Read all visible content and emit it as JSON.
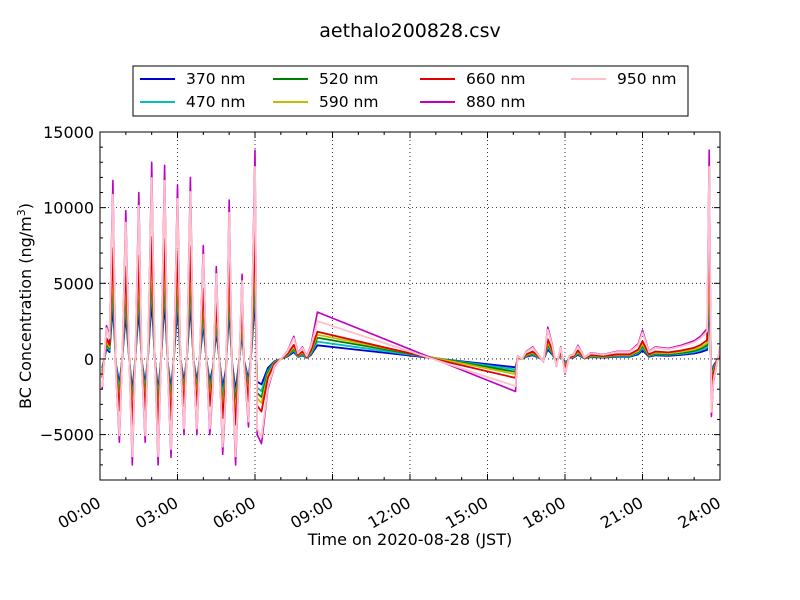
{
  "chart_data": {
    "type": "line",
    "title": "aethalo200828.csv",
    "xlabel": "Time on 2020-08-28 (JST)",
    "ylabel": "BC Concentration (ng/m",
    "ylabel_sup": "3",
    "ylabel_end": ")",
    "xlim": [
      "00:00",
      "24:00"
    ],
    "ylim": [
      -8000,
      15000
    ],
    "grid": true,
    "grid_style": "dotted",
    "legend_position": "top",
    "x_tick_labels": [
      "00:00",
      "03:00",
      "06:00",
      "09:00",
      "12:00",
      "15:00",
      "18:00",
      "21:00",
      "24:00"
    ],
    "y_ticks": [
      -5000,
      0,
      5000,
      10000,
      15000
    ],
    "y_tick_labels": [
      "−5000",
      "0",
      "5000",
      "10000",
      "15000"
    ],
    "series": [
      {
        "name": "370 nm",
        "color": "#0000cc",
        "scale": 0.3,
        "diag_start": 900,
        "diag_end": -550
      },
      {
        "name": "470 nm",
        "color": "#00bfbf",
        "scale": 0.38,
        "diag_start": 1150,
        "diag_end": -700
      },
      {
        "name": "520 nm",
        "color": "#008000",
        "scale": 0.45,
        "diag_start": 1400,
        "diag_end": -850
      },
      {
        "name": "590 nm",
        "color": "#bfbf00",
        "scale": 0.52,
        "diag_start": 1600,
        "diag_end": -1000
      },
      {
        "name": "660 nm",
        "color": "#e00000",
        "scale": 0.62,
        "diag_start": 1800,
        "diag_end": -1250
      },
      {
        "name": "880 nm",
        "color": "#bf00bf",
        "scale": 1.0,
        "diag_start": 3100,
        "diag_end": -2150
      },
      {
        "name": "950 nm",
        "color": "#ffc0cb",
        "scale": 0.92,
        "diag_start": 2500,
        "diag_end": -1800
      }
    ],
    "base_profile_880": [
      [
        "00:05",
        -2000
      ],
      [
        "00:15",
        2200
      ],
      [
        "00:22",
        1500
      ],
      [
        "00:30",
        11800
      ],
      [
        "00:37",
        -1000
      ],
      [
        "00:45",
        -5500
      ],
      [
        "00:52",
        500
      ],
      [
        "01:00",
        9800
      ],
      [
        "01:07",
        1000
      ],
      [
        "01:15",
        -7000
      ],
      [
        "01:22",
        0
      ],
      [
        "01:30",
        11000
      ],
      [
        "01:37",
        -500
      ],
      [
        "01:45",
        -5500
      ],
      [
        "01:52",
        1000
      ],
      [
        "02:00",
        13000
      ],
      [
        "02:07",
        500
      ],
      [
        "02:15",
        -7000
      ],
      [
        "02:22",
        0
      ],
      [
        "02:30",
        12800
      ],
      [
        "02:37",
        -500
      ],
      [
        "02:45",
        -6500
      ],
      [
        "02:52",
        800
      ],
      [
        "03:00",
        11500
      ],
      [
        "03:07",
        0
      ],
      [
        "03:15",
        -5000
      ],
      [
        "03:22",
        500
      ],
      [
        "03:30",
        12000
      ],
      [
        "03:37",
        0
      ],
      [
        "03:45",
        -5000
      ],
      [
        "03:52",
        500
      ],
      [
        "04:00",
        7500
      ],
      [
        "04:07",
        0
      ],
      [
        "04:15",
        -5000
      ],
      [
        "04:22",
        -2000
      ],
      [
        "04:30",
        6100
      ],
      [
        "04:37",
        0
      ],
      [
        "04:45",
        -6300
      ],
      [
        "04:52",
        -2500
      ],
      [
        "05:00",
        10500
      ],
      [
        "05:07",
        -1000
      ],
      [
        "05:15",
        -7000
      ],
      [
        "05:22",
        -1500
      ],
      [
        "05:30",
        5600
      ],
      [
        "05:35",
        -500
      ],
      [
        "05:45",
        -4500
      ],
      [
        "05:52",
        2000
      ],
      [
        "06:00",
        13800
      ],
      [
        "06:05",
        -5000
      ],
      [
        "06:15",
        -5600
      ],
      [
        "06:30",
        -2000
      ],
      [
        "06:45",
        -500
      ],
      [
        "07:00",
        0
      ],
      [
        "07:15",
        500
      ],
      [
        "07:30",
        1500
      ],
      [
        "07:40",
        400
      ],
      [
        "07:50",
        800
      ],
      [
        "08:00",
        200
      ],
      [
        "08:10",
        900
      ],
      [
        "08:25",
        "DIAG_START"
      ],
      [
        "16:05",
        "DIAG_END"
      ],
      [
        "16:10",
        200
      ],
      [
        "16:20",
        0
      ],
      [
        "16:30",
        500
      ],
      [
        "16:45",
        800
      ],
      [
        "17:00",
        200
      ],
      [
        "17:10",
        -200
      ],
      [
        "17:20",
        2100
      ],
      [
        "17:30",
        1000
      ],
      [
        "17:40",
        -500
      ],
      [
        "17:50",
        800
      ],
      [
        "18:00",
        -1000
      ],
      [
        "18:10",
        200
      ],
      [
        "18:20",
        300
      ],
      [
        "18:30",
        900
      ],
      [
        "18:45",
        100
      ],
      [
        "19:00",
        400
      ],
      [
        "19:30",
        300
      ],
      [
        "20:00",
        500
      ],
      [
        "20:30",
        500
      ],
      [
        "20:50",
        1000
      ],
      [
        "21:00",
        1900
      ],
      [
        "21:15",
        500
      ],
      [
        "21:30",
        800
      ],
      [
        "22:00",
        700
      ],
      [
        "22:30",
        900
      ],
      [
        "23:00",
        1200
      ],
      [
        "23:15",
        1500
      ],
      [
        "23:30",
        2000
      ],
      [
        "23:35",
        13800
      ],
      [
        "23:40",
        -3800
      ],
      [
        "23:45",
        -1500
      ],
      [
        "24:00",
        800
      ]
    ]
  }
}
